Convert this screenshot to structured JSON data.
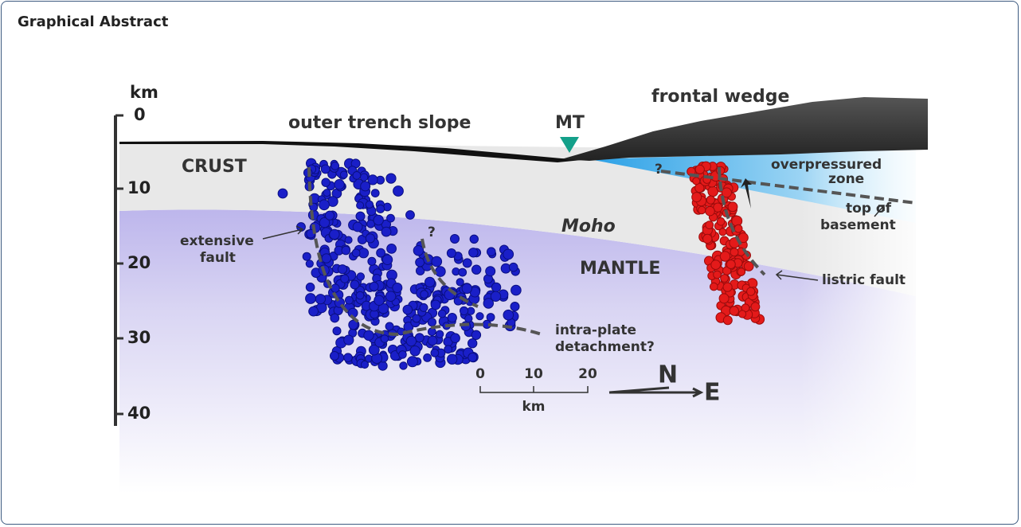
{
  "header": {
    "title": "Graphical Abstract"
  },
  "figure": {
    "depth_axis": {
      "unit": "km",
      "ticks": [
        "0",
        "10",
        "20",
        "30",
        "40"
      ]
    },
    "labels": {
      "outer_trench_slope": "outer trench slope",
      "mt": "MT",
      "frontal_wedge": "frontal wedge",
      "crust": "CRUST",
      "overpressured_zone": [
        "overpressured",
        "zone"
      ],
      "moho": "Moho",
      "mantle": "MANTLE",
      "extensive_fault": [
        "extensive",
        "fault"
      ],
      "question_west": "?",
      "question_east": "?",
      "top_of_basement": [
        "top of",
        "basement"
      ],
      "listric_fault": "listric fault",
      "intra_plate_detachment": [
        "intra-plate",
        "detachment?"
      ]
    },
    "scale_bar": {
      "ticks": [
        "0",
        "10",
        "20"
      ],
      "unit": "km"
    },
    "compass": {
      "north": "N",
      "east": "E"
    }
  }
}
